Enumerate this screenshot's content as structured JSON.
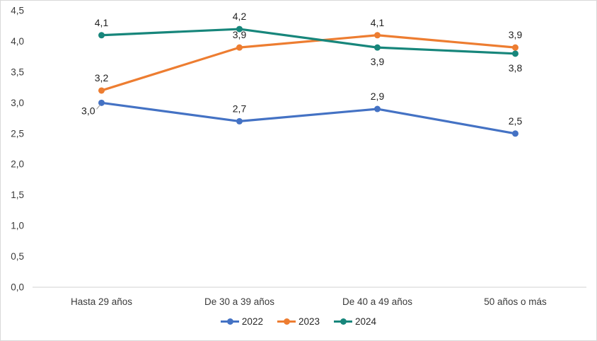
{
  "chart_data": {
    "type": "line",
    "categories": [
      "Hasta 29 años",
      "De 30 a 39 años",
      "De 40 a 49 años",
      "50 años o más"
    ],
    "series": [
      {
        "name": "2022",
        "color": "#4472C4",
        "values": [
          3.0,
          2.7,
          2.9,
          2.5
        ],
        "labels": [
          "3,0",
          "2,7",
          "2,9",
          "2,5"
        ],
        "label_positions": [
          "left-leader",
          "above",
          "above",
          "above"
        ]
      },
      {
        "name": "2023",
        "color": "#ED7D31",
        "values": [
          3.2,
          3.9,
          4.1,
          3.9
        ],
        "labels": [
          "3,2",
          "3,9",
          "4,1",
          "3,9"
        ],
        "label_positions": [
          "above",
          "above",
          "above",
          "above"
        ]
      },
      {
        "name": "2024",
        "color": "#17867B",
        "values": [
          4.1,
          4.2,
          3.9,
          3.8
        ],
        "labels": [
          "4,1",
          "4,2",
          "3,9",
          "3,8"
        ],
        "label_positions": [
          "above",
          "above",
          "below",
          "below"
        ]
      }
    ],
    "y_axis": {
      "min": 0,
      "max": 4.5,
      "step": 0.5,
      "tick_labels": [
        "0,0",
        "0,5",
        "1,0",
        "1,5",
        "2,0",
        "2,5",
        "3,0",
        "3,5",
        "4,0",
        "4,5"
      ]
    },
    "grid": false,
    "legend_position": "bottom",
    "axis_line_color": "#d9d9d9",
    "leader_line_color": "#a6a6a6"
  }
}
